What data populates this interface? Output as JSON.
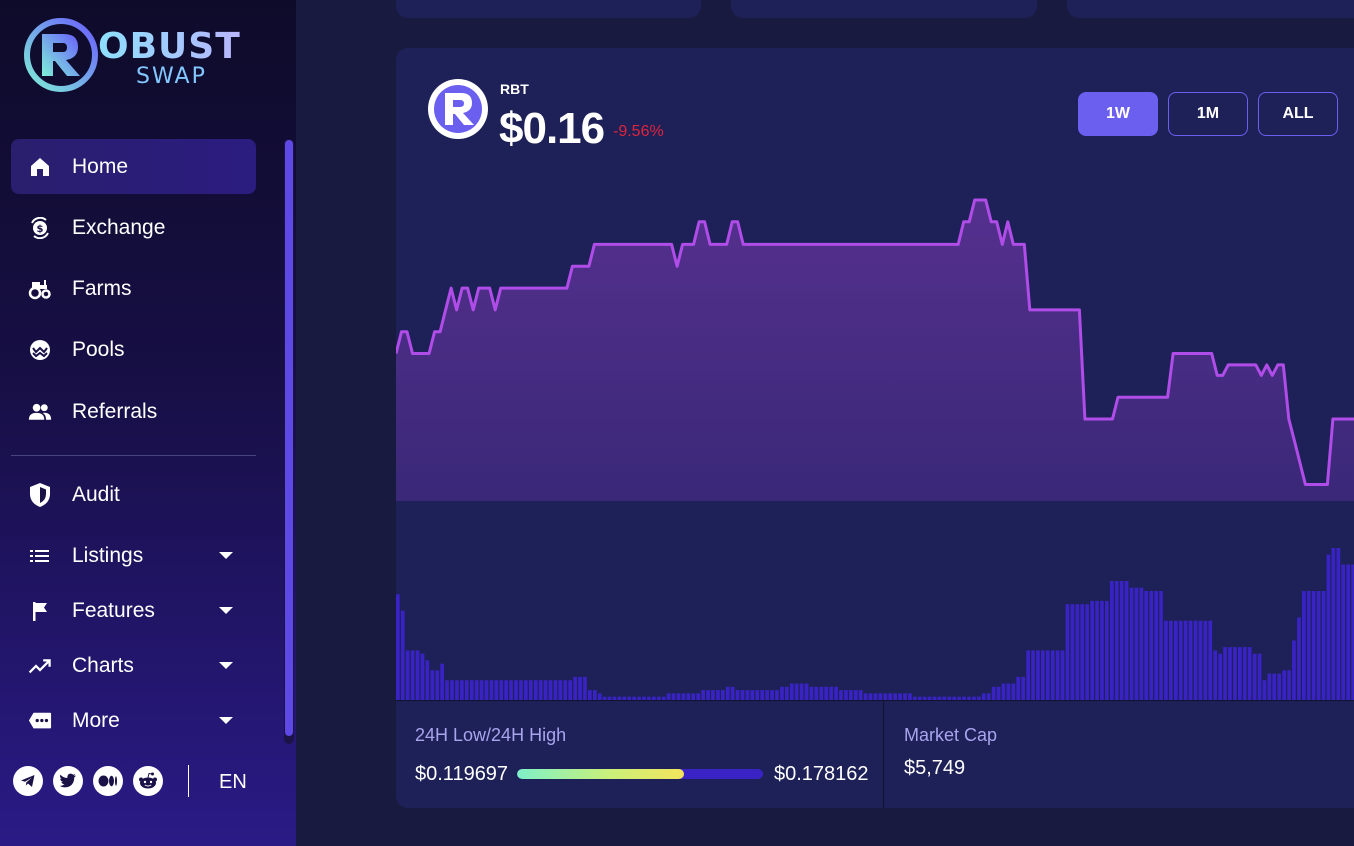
{
  "brand": {
    "line1": "OBUST",
    "line2": "SWAP"
  },
  "sidebar": {
    "items": [
      {
        "label": "Home",
        "icon": "home-icon",
        "active": true
      },
      {
        "label": "Exchange",
        "icon": "exchange-icon"
      },
      {
        "label": "Farms",
        "icon": "tractor-icon"
      },
      {
        "label": "Pools",
        "icon": "pools-icon"
      },
      {
        "label": "Referrals",
        "icon": "people-icon"
      },
      {
        "label": "Audit",
        "icon": "shield-icon"
      },
      {
        "label": "Listings",
        "icon": "list-icon",
        "dropdown": true
      },
      {
        "label": "Features",
        "icon": "flag-icon",
        "dropdown": true
      },
      {
        "label": "Charts",
        "icon": "trending-up-icon",
        "dropdown": true
      },
      {
        "label": "More",
        "icon": "more-icon",
        "dropdown": true
      }
    ],
    "socials": [
      "telegram-icon",
      "twitter-icon",
      "medium-icon",
      "reddit-icon"
    ],
    "language": "EN"
  },
  "token": {
    "symbol": "RBT",
    "price": "$0.16",
    "change": "-9.56%",
    "change_color": "#e0243c"
  },
  "ranges": [
    {
      "label": "1W",
      "active": true
    },
    {
      "label": "1M",
      "active": false
    },
    {
      "label": "ALL",
      "active": false
    }
  ],
  "stats": {
    "low_high_label": "24H Low/24H High",
    "low": "$0.119697",
    "high": "$0.178162",
    "current_position": 0.68,
    "market_cap_label": "Market Cap",
    "market_cap": "$5,749"
  },
  "colors": {
    "accent": "#6b5ff0",
    "line": "#b04ce8",
    "volume": "#3a23c4"
  },
  "chart_data": {
    "type": "line",
    "series": [
      {
        "values": [
          0.1482,
          0.1509,
          0.1509,
          0.1482,
          0.1482,
          0.1482,
          0.1482,
          0.1509,
          0.1509,
          0.1536,
          0.1563,
          0.1536,
          0.1563,
          0.1563,
          0.1536,
          0.1563,
          0.1563,
          0.1563,
          0.1536,
          0.1563,
          0.1563,
          0.1563,
          0.1563,
          0.1563,
          0.1563,
          0.1563,
          0.1563,
          0.1563,
          0.1563,
          0.1563,
          0.1563,
          0.1563,
          0.159,
          0.159,
          0.159,
          0.159,
          0.1617,
          0.1617,
          0.1617,
          0.1617,
          0.1617,
          0.1617,
          0.1617,
          0.1617,
          0.1617,
          0.1617,
          0.1617,
          0.1617,
          0.1617,
          0.1617,
          0.1617,
          0.159,
          0.1617,
          0.1617,
          0.1617,
          0.1645,
          0.1645,
          0.1617,
          0.1617,
          0.1617,
          0.1617,
          0.1645,
          0.1645,
          0.1617,
          0.1617,
          0.1617,
          0.1617,
          0.1617,
          0.1617,
          0.1617,
          0.1617,
          0.1617,
          0.1617,
          0.1617,
          0.1617,
          0.1617,
          0.1617,
          0.1617,
          0.1617,
          0.1617,
          0.1617,
          0.1617,
          0.1617,
          0.1617,
          0.1617,
          0.1617,
          0.1617,
          0.1617,
          0.1617,
          0.1617,
          0.1617,
          0.1617,
          0.1617,
          0.1617,
          0.1617,
          0.1617,
          0.1617,
          0.1617,
          0.1617,
          0.1617,
          0.1617,
          0.1617,
          0.1617,
          0.1645,
          0.1645,
          0.1672,
          0.1672,
          0.1672,
          0.1645,
          0.1645,
          0.1617,
          0.1645,
          0.1617,
          0.1617,
          0.1617,
          0.1536,
          0.1536,
          0.1536,
          0.1536,
          0.1536,
          0.1536,
          0.1536,
          0.1536,
          0.1536,
          0.1536,
          0.1401,
          0.1401,
          0.1401,
          0.1401,
          0.1401,
          0.1401,
          0.1428,
          0.1428,
          0.1428,
          0.1428,
          0.1428,
          0.1428,
          0.1428,
          0.1428,
          0.1428,
          0.1428,
          0.1482,
          0.1482,
          0.1482,
          0.1482,
          0.1482,
          0.1482,
          0.1482,
          0.1482,
          0.1455,
          0.1455,
          0.1468,
          0.1468,
          0.1468,
          0.1468,
          0.1468,
          0.1468,
          0.1455,
          0.1468,
          0.1455,
          0.1468,
          0.1468,
          0.1401,
          0.1374,
          0.1347,
          0.132,
          0.132,
          0.132,
          0.132,
          0.132,
          0.1401,
          0.1401,
          0.1401,
          0.1401,
          0.1401,
          0.1401,
          0.1401
        ]
      }
    ],
    "volume": [
      32,
      27,
      15,
      15,
      15,
      14,
      12,
      9,
      9,
      11,
      6,
      6,
      6,
      6,
      6,
      6,
      6,
      6,
      6,
      6,
      6,
      6,
      6,
      6,
      6,
      6,
      6,
      6,
      6,
      6,
      6,
      6,
      6,
      6,
      6,
      6,
      7,
      7,
      7,
      3,
      3,
      2,
      1,
      1,
      1,
      1,
      1,
      1,
      1,
      1,
      1,
      1,
      1,
      1,
      1,
      2,
      2,
      2,
      2,
      2,
      2,
      2,
      3,
      3,
      3,
      3,
      3,
      4,
      4,
      3,
      3,
      3,
      3,
      3,
      3,
      3,
      3,
      3,
      4,
      4,
      5,
      5,
      5,
      5,
      4,
      4,
      4,
      4,
      4,
      4,
      3,
      3,
      3,
      3,
      3,
      2,
      2,
      2,
      2,
      2,
      2,
      2,
      2,
      2,
      2,
      1,
      1,
      1,
      1,
      1,
      1,
      1,
      1,
      1,
      1,
      1,
      1,
      1,
      1,
      2,
      2,
      4,
      4,
      5,
      5,
      5,
      7,
      7,
      15,
      15,
      15,
      15,
      15,
      15,
      15,
      15,
      29,
      29,
      29,
      29,
      29,
      30,
      30,
      30,
      30,
      36,
      36,
      36,
      36,
      34,
      34,
      34,
      33,
      33,
      33,
      33,
      24,
      24,
      24,
      24,
      24,
      24,
      24,
      24,
      24,
      24,
      15,
      14,
      16,
      16,
      16,
      16,
      16,
      16,
      14,
      14,
      6,
      8,
      8,
      8,
      9,
      9,
      18,
      25,
      33,
      33,
      33,
      33,
      33,
      44,
      46,
      46,
      41,
      41,
      41,
      41,
      41
    ],
    "period": "1W"
  }
}
